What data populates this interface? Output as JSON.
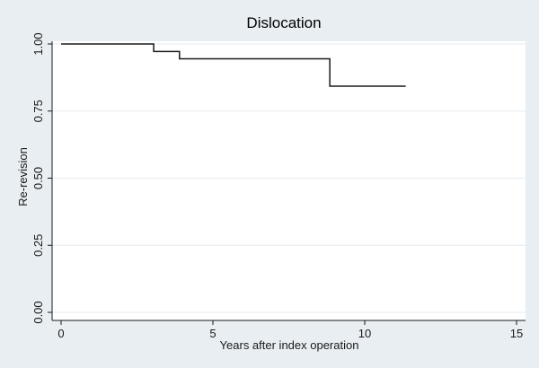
{
  "chart_data": {
    "type": "line",
    "title": "Dislocation",
    "xlabel": "Years after index operation",
    "ylabel": "Re-revision",
    "xlim": [
      0,
      15
    ],
    "ylim": [
      0,
      1
    ],
    "x_ticks": [
      0,
      5,
      10,
      15
    ],
    "x_tick_labels": [
      "0",
      "5",
      "10",
      "15"
    ],
    "y_ticks": [
      0,
      0.25,
      0.5,
      0.75,
      1
    ],
    "y_tick_labels": [
      "0.00",
      "0.25",
      "0.50",
      "0.75",
      "1.00"
    ],
    "grid": true,
    "legend": "none",
    "step": true,
    "series": [
      {
        "x": [
          0,
          3.05,
          3.9,
          8.85,
          11.35
        ],
        "y": [
          1.0,
          0.972,
          0.945,
          0.843,
          0.843
        ]
      }
    ],
    "colors": {
      "background": "#e8eef2",
      "plot_background": "#ffffff",
      "line": "#1a1a1a",
      "grid": "#e6ebee",
      "axis": "#1a1a1a"
    }
  }
}
